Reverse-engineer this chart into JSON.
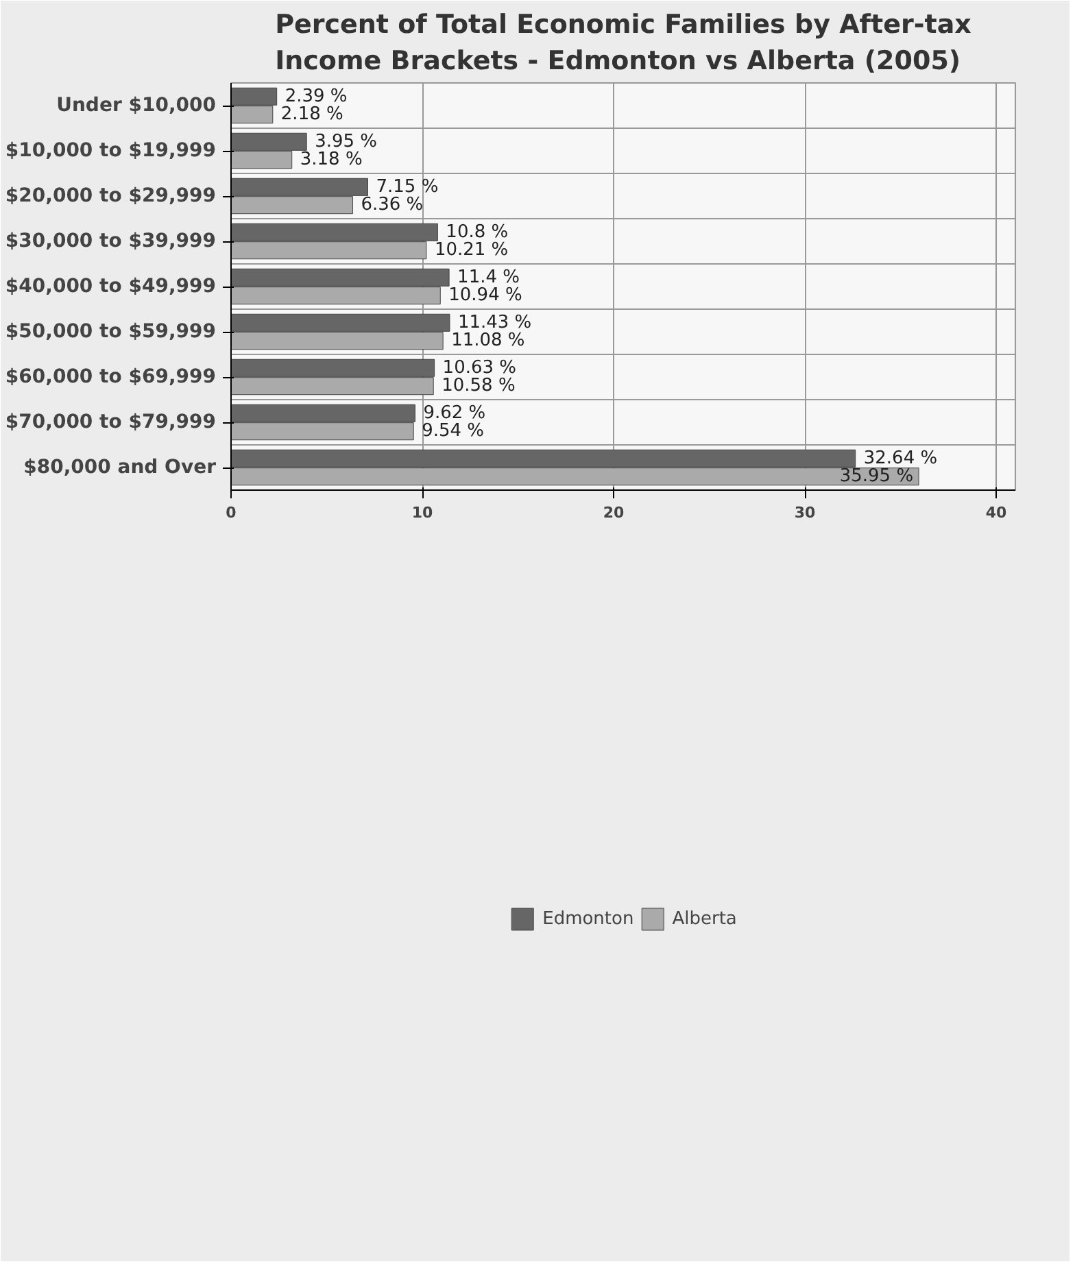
{
  "chart_data": {
    "type": "bar",
    "orientation": "horizontal",
    "title": "Percent of Total Economic Families by After-tax\nIncome Brackets - Edmonton vs Alberta (2005)",
    "categories": [
      "Under $10,000",
      "$10,000 to $19,999",
      "$20,000 to $29,999",
      "$30,000 to $39,999",
      "$40,000 to $49,999",
      "$50,000 to $59,999",
      "$60,000 to $69,999",
      "$70,000 to $79,999",
      "$80,000 and Over"
    ],
    "series": [
      {
        "name": "Edmonton",
        "color": "#666666",
        "values": [
          2.39,
          3.95,
          7.15,
          10.8,
          11.4,
          11.43,
          10.63,
          9.62,
          32.64
        ],
        "value_labels": [
          "2.39 %",
          "3.95 %",
          "7.15 %",
          "10.8 %",
          "11.4 %",
          "11.43 %",
          "10.63 %",
          "9.62 %",
          "32.64 %"
        ]
      },
      {
        "name": "Alberta",
        "color": "#aaaaaa",
        "values": [
          2.18,
          3.18,
          6.36,
          10.21,
          10.94,
          11.08,
          10.58,
          9.54,
          35.95
        ],
        "value_labels": [
          "2.18 %",
          "3.18 %",
          "6.36 %",
          "10.21 %",
          "10.94 %",
          "11.08 %",
          "10.58 %",
          "9.54 %",
          "35.95 %"
        ]
      }
    ],
    "xlim": [
      0,
      41
    ],
    "xticks": [
      0,
      10,
      20,
      30,
      40
    ],
    "grid": true,
    "legend": "bottom"
  }
}
